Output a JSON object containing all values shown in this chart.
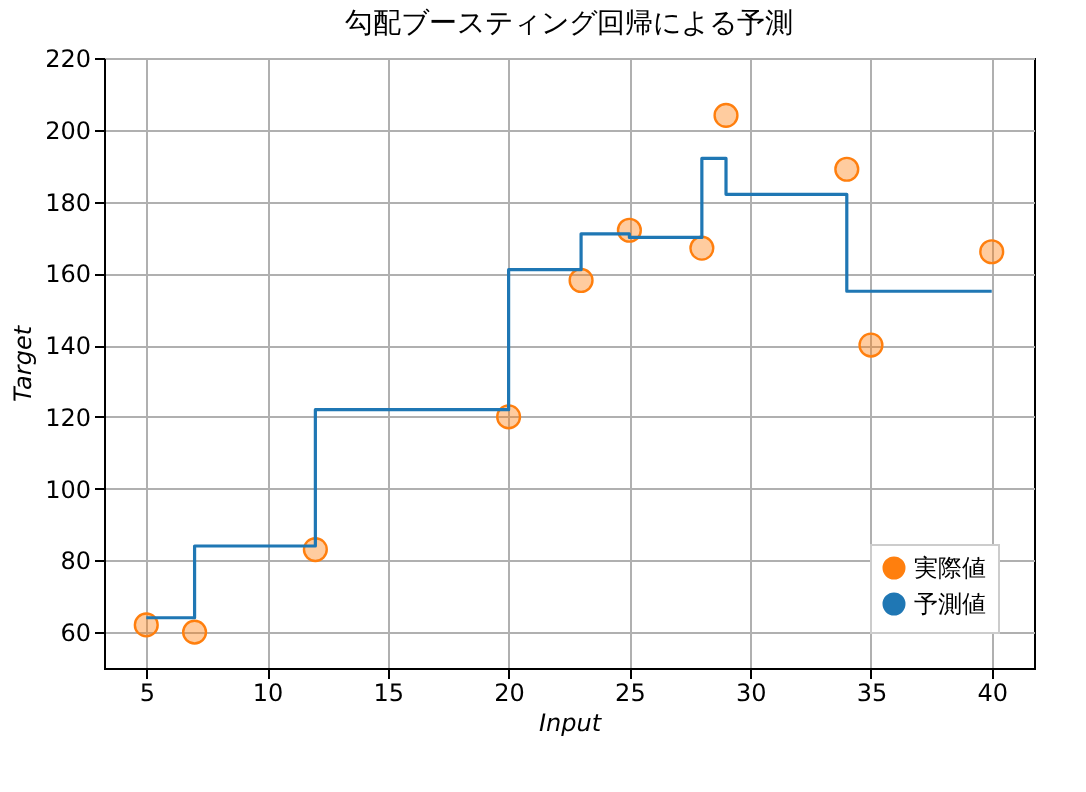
{
  "chart_data": {
    "type": "scatter",
    "title": "勾配ブースティング回帰による予測",
    "xlabel": "Input",
    "ylabel": "Target",
    "xlim": [
      3.25,
      41.75
    ],
    "xticks": [
      5,
      10,
      15,
      20,
      25,
      30,
      35,
      40
    ],
    "ylim": [
      50,
      220
    ],
    "yticks": [
      60,
      80,
      100,
      120,
      140,
      160,
      180,
      200,
      220
    ],
    "grid": true,
    "legend": "bottom right",
    "series": [
      {
        "name": "実際値",
        "marker": "circle",
        "color": "#ff7f0e",
        "x": [
          5,
          7,
          12,
          20,
          23,
          25,
          28,
          29,
          34,
          35,
          40
        ],
        "values": [
          62,
          60,
          83,
          120,
          158,
          172,
          167,
          204,
          189,
          140,
          166
        ]
      },
      {
        "name": "予測値",
        "type": "step",
        "color": "#1f77b4",
        "x": [
          5,
          7,
          12,
          20,
          23,
          25,
          28,
          29,
          34,
          35,
          40
        ],
        "values": [
          64,
          84,
          122,
          161,
          171,
          170,
          192,
          182,
          155,
          155,
          155
        ]
      }
    ]
  }
}
